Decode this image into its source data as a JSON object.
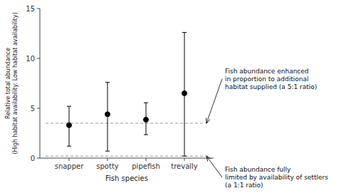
{
  "chart_data": {
    "type": "errorbar",
    "xlabel": "Fish species",
    "ylabel": "Relative total abundance\n(High habitat availability: Low habitat availability)",
    "categories": [
      "snapper",
      "spotty",
      "pipefish",
      "trevally"
    ],
    "values": [
      3.3,
      4.4,
      3.85,
      6.5
    ],
    "error_lower": [
      2.1,
      3.7,
      1.5,
      6.3
    ],
    "error_upper": [
      1.9,
      3.2,
      1.7,
      6.1
    ],
    "color": "black",
    "marker": "circle",
    "ylim": [
      0,
      15
    ],
    "yticks": [
      0,
      5,
      10,
      15
    ],
    "reference_lines": [
      {
        "y": 3.5,
        "color": "#999999",
        "line_style": "dashed",
        "label": "Fish abundance enhanced\nin proportion to additional\nhabitat supplied (a 5:1 ratio)"
      },
      {
        "y": 0.2,
        "color": "#999999",
        "line_style": "dashed",
        "label": "Fish abundance fully\nlimited by availability of settlers\n(a 1:1 ratio)"
      }
    ]
  }
}
